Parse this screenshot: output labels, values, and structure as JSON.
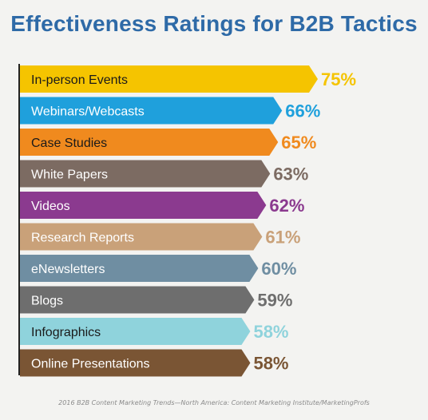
{
  "chart_data": {
    "type": "bar",
    "orientation": "horizontal",
    "title": "Effectiveness Ratings for B2B Tactics",
    "categories": [
      "In-person Events",
      "Webinars/Webcasts",
      "Case Studies",
      "White Papers",
      "Videos",
      "Research Reports",
      "eNewsletters",
      "Blogs",
      "Infographics",
      "Online Presentations"
    ],
    "values": [
      75,
      66,
      65,
      63,
      62,
      61,
      60,
      59,
      58,
      58
    ],
    "value_labels": [
      "75%",
      "66%",
      "65%",
      "63%",
      "62%",
      "61%",
      "60%",
      "59%",
      "58%",
      "58%"
    ],
    "colors": [
      "#f5c400",
      "#1fa0dc",
      "#f08a1e",
      "#7c6b62",
      "#8b3a8f",
      "#c9a179",
      "#6f8ea2",
      "#6e6e6e",
      "#8fd3dc",
      "#7a5534"
    ],
    "xlim": [
      0,
      75
    ],
    "unit": "%",
    "grid": false,
    "legend": "none"
  },
  "source": "2016 B2B Content Marketing Trends—North America: Content Marketing Institute/MarketingProfs"
}
